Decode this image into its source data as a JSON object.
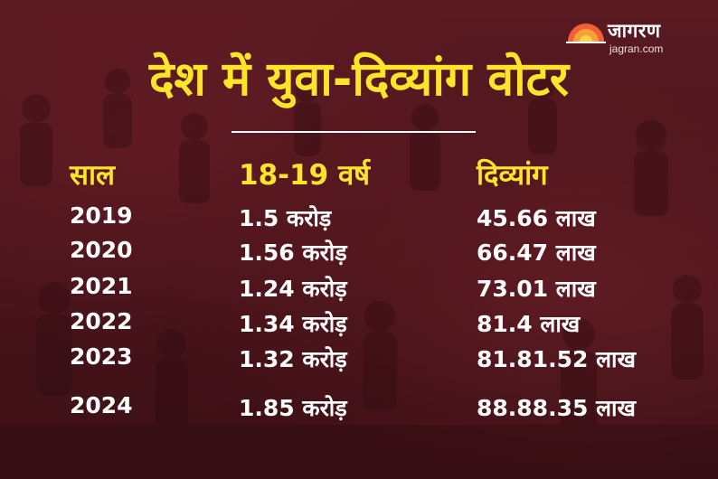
{
  "logo": {
    "brand": "जागरण",
    "site": "jagran.com",
    "sun_color": "#f2603a"
  },
  "title": "देश में युवा-दिव्यांग वोटर",
  "table": {
    "headers": [
      "साल",
      "18-19 वर्ष",
      "दिव्यांग"
    ],
    "rows": [
      {
        "year": "2019",
        "youth": "1.5 करोड़",
        "disabled": "45.66 लाख"
      },
      {
        "year": "2020",
        "youth": "1.56 करोड़",
        "disabled": "66.47 लाख"
      },
      {
        "year": "2021",
        "youth": "1.24 करोड़",
        "disabled": "73.01 लाख"
      },
      {
        "year": "2022",
        "youth": "1.34 करोड़",
        "disabled": "81.4 लाख"
      },
      {
        "year": "2023",
        "youth": "1.32 करोड़",
        "disabled": "81.81.52 लाख"
      },
      {
        "year": "2024",
        "youth": "1.85 करोड़",
        "disabled": "88.88.35 लाख"
      }
    ]
  },
  "colors": {
    "background": "#4a141b",
    "heading": "#ffe52a",
    "text": "#ffffff"
  }
}
